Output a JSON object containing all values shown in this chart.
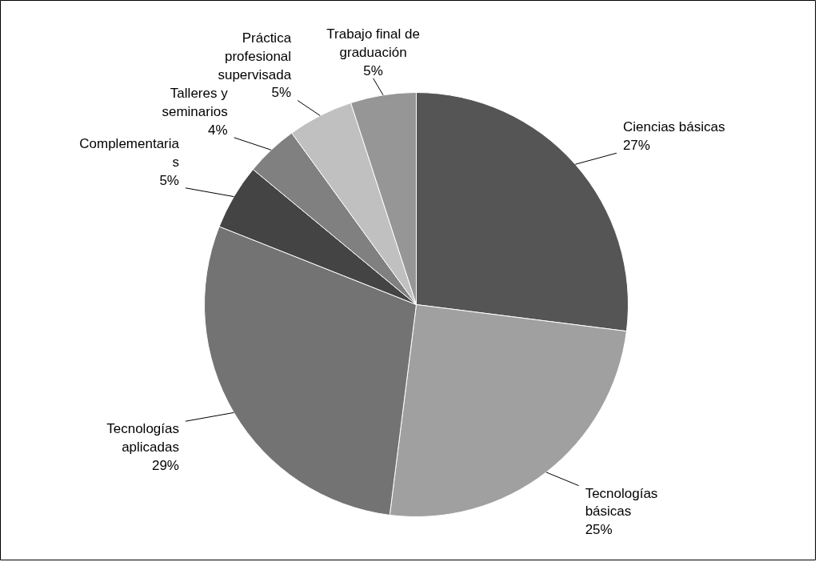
{
  "chart_data": {
    "type": "pie",
    "categories": [
      "Ciencias básicas",
      "Tecnologías\nbásicas",
      "Tecnologías\naplicadas",
      "Complementaria\ns",
      "Talleres y\nseminarios",
      "Práctica\nprofesional\nsupervisada",
      "Trabajo final de\ngraduación"
    ],
    "values": [
      27,
      25,
      29,
      5,
      4,
      5,
      5
    ],
    "value_labels": [
      "27%",
      "25%",
      "29%",
      "5%",
      "4%",
      "5%",
      "5%"
    ],
    "colors": [
      "#555555",
      "#a0a0a0",
      "#737373",
      "#444444",
      "#808080",
      "#c0c0c0",
      "#969696"
    ]
  }
}
